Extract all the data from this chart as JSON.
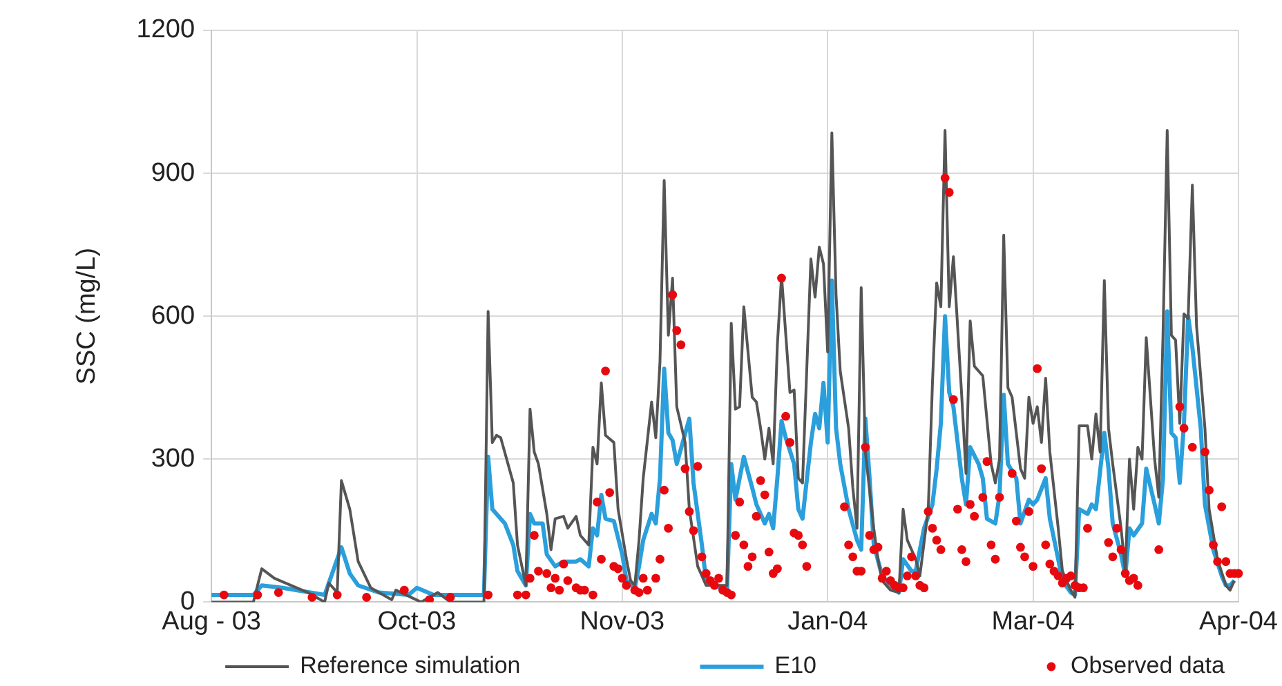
{
  "chart_data": {
    "type": "line",
    "ylabel": "SSC (mg/L)",
    "categories": [
      "Aug - 03",
      null,
      null,
      null,
      null,
      null,
      null,
      null,
      null,
      null,
      null,
      null,
      null,
      null,
      null,
      null,
      null,
      null,
      null,
      null,
      null,
      null,
      null,
      null,
      null,
      null,
      null,
      null,
      null,
      null,
      null,
      null,
      null,
      null,
      null,
      null,
      null,
      null,
      null,
      null,
      null,
      null,
      null,
      null,
      null,
      null,
      null,
      null,
      null,
      "Oct-03",
      null,
      null,
      null,
      null,
      null,
      null,
      null,
      null,
      null,
      null,
      null,
      null,
      null,
      null,
      null,
      null,
      null,
      null,
      null,
      null,
      null,
      null,
      null,
      null,
      null,
      null,
      null,
      null,
      null,
      null,
      null,
      null,
      null,
      null,
      null,
      null,
      null,
      null,
      null,
      null,
      null,
      null,
      null,
      null,
      null,
      null,
      null,
      null,
      "Nov-03",
      null,
      null,
      null,
      null,
      null,
      null,
      null,
      null,
      null,
      null,
      null,
      null,
      null,
      null,
      null,
      null,
      null,
      null,
      null,
      null,
      null,
      null,
      null,
      null,
      null,
      null,
      null,
      null,
      null,
      null,
      null,
      null,
      null,
      null,
      null,
      null,
      null,
      null,
      null,
      null,
      null,
      null,
      null,
      null,
      null,
      null,
      null,
      null,
      "Jan-04",
      null,
      null,
      null,
      null,
      null,
      null,
      null,
      null,
      null,
      null,
      null,
      null,
      null,
      null,
      null,
      null,
      null,
      null,
      null,
      null,
      null,
      null,
      null,
      null,
      null,
      null,
      null,
      null,
      null,
      null,
      null,
      null,
      null,
      null,
      null,
      null,
      null,
      null,
      null,
      null,
      null,
      null,
      null,
      null,
      null,
      null,
      null,
      null,
      "Mar-04",
      null,
      null,
      null,
      null,
      null,
      null,
      null,
      null,
      null,
      null,
      null,
      null,
      null,
      null,
      null,
      null,
      null,
      null,
      null,
      null,
      null,
      null,
      null,
      null,
      null,
      null,
      null,
      null,
      null,
      null,
      null,
      null,
      null,
      null,
      null,
      null,
      null,
      null,
      null,
      null,
      null,
      null,
      null,
      null,
      null,
      null,
      null,
      null,
      "Apr-04"
    ],
    "ylim": [
      0,
      1200
    ],
    "yticks": [
      0,
      300,
      600,
      900,
      1200
    ],
    "grid": true,
    "legend": "bottom",
    "series": [
      {
        "name": "Reference simulation",
        "color": "#555555",
        "values": [
          0,
          null,
          null,
          null,
          null,
          null,
          null,
          null,
          null,
          null,
          0,
          null,
          70,
          null,
          null,
          50,
          null,
          null,
          null,
          null,
          null,
          null,
          null,
          20,
          null,
          null,
          null,
          0,
          40,
          null,
          20,
          255,
          null,
          195,
          null,
          85,
          null,
          null,
          30,
          null,
          null,
          null,
          null,
          5,
          25,
          null,
          null,
          null,
          null,
          null,
          0,
          null,
          null,
          null,
          20,
          null,
          null,
          0,
          null,
          null,
          null,
          null,
          null,
          null,
          null,
          0,
          610,
          335,
          350,
          345,
          null,
          null,
          250,
          120,
          null,
          35,
          405,
          315,
          290,
          null,
          185,
          110,
          175,
          null,
          180,
          155,
          null,
          180,
          140,
          null,
          120,
          325,
          290,
          460,
          350,
          null,
          335,
          195,
          null,
          90,
          45,
          35,
          130,
          260,
          null,
          420,
          345,
          505,
          885,
          560,
          680,
          410,
          null,
          335,
          195,
          null,
          75,
          null,
          35,
          35,
          null,
          null,
          null,
          35,
          585,
          405,
          410,
          620,
          null,
          430,
          420,
          365,
          300,
          365,
          290,
          540,
          685,
          null,
          440,
          445,
          260,
          250,
          null,
          720,
          640,
          745,
          710,
          525,
          985,
          645,
          485,
          null,
          365,
          240,
          155,
          660,
          315,
          null,
          155,
          90,
          45,
          null,
          25,
          null,
          20,
          195,
          130,
          null,
          90,
          55,
          null,
          195,
          460,
          670,
          620,
          990,
          620,
          725,
          null,
          430,
          270,
          590,
          495,
          null,
          475,
          null,
          290,
          250,
          300,
          770,
          450,
          430,
          null,
          280,
          260,
          430,
          375,
          410,
          335,
          470,
          315,
          null,
          155,
          65,
          null,
          25,
          10,
          370,
          null,
          370,
          300,
          395,
          315,
          675,
          365,
          290,
          null,
          155,
          65,
          300,
          195,
          325,
          300,
          555,
          null,
          300,
          220,
          560,
          990,
          560,
          550,
          375,
          605,
          595,
          875,
          580,
          null,
          365,
          195,
          null,
          90,
          null,
          35,
          25,
          45,
          null
        ]
      },
      {
        "name": "E10",
        "color": "#2a9fdc",
        "values": [
          15,
          null,
          null,
          null,
          null,
          null,
          null,
          null,
          null,
          null,
          15,
          null,
          35,
          null,
          null,
          null,
          null,
          30,
          null,
          null,
          null,
          null,
          null,
          null,
          null,
          null,
          null,
          15,
          null,
          null,
          null,
          115,
          null,
          60,
          null,
          35,
          null,
          null,
          null,
          null,
          20,
          null,
          null,
          null,
          null,
          null,
          null,
          15,
          null,
          30,
          null,
          null,
          null,
          15,
          null,
          null,
          null,
          null,
          null,
          null,
          null,
          null,
          null,
          null,
          null,
          15,
          305,
          195,
          185,
          null,
          165,
          null,
          120,
          65,
          null,
          35,
          185,
          165,
          null,
          165,
          100,
          null,
          75,
          null,
          85,
          null,
          null,
          85,
          90,
          null,
          75,
          155,
          140,
          225,
          175,
          null,
          170,
          null,
          100,
          45,
          null,
          30,
          75,
          130,
          null,
          185,
          165,
          260,
          490,
          355,
          340,
          290,
          null,
          null,
          385,
          250,
          null,
          120,
          45,
          null,
          35,
          null,
          null,
          25,
          290,
          215,
          260,
          305,
          null,
          240,
          205,
          null,
          165,
          185,
          155,
          260,
          380,
          345,
          null,
          290,
          195,
          175,
          null,
          335,
          395,
          365,
          460,
          335,
          675,
          365,
          290,
          null,
          195,
          null,
          130,
          110,
          385,
          260,
          120,
          null,
          55,
          null,
          35,
          null,
          20,
          90,
          null,
          65,
          65,
          null,
          155,
          null,
          205,
          280,
          375,
          600,
          440,
          410,
          null,
          260,
          205,
          325,
          null,
          290,
          260,
          175,
          null,
          165,
          225,
          435,
          290,
          null,
          260,
          165,
          null,
          215,
          205,
          215,
          null,
          260,
          175,
          null,
          90,
          45,
          null,
          20,
          15,
          195,
          null,
          185,
          205,
          195,
          null,
          355,
          280,
          165,
          null,
          100,
          55,
          155,
          140,
          null,
          165,
          280,
          null,
          205,
          165,
          260,
          610,
          355,
          345,
          250,
          375,
          600,
          535,
          null,
          365,
          205,
          null,
          110,
          null,
          55,
          35,
          35,
          45,
          null
        ]
      },
      {
        "name": "Observed data",
        "type": "scatter",
        "marker": "circle",
        "color": "#e8090f",
        "values": [
          null,
          null,
          null,
          15,
          null,
          null,
          null,
          null,
          null,
          null,
          null,
          15,
          null,
          null,
          null,
          null,
          20,
          null,
          null,
          null,
          null,
          null,
          null,
          null,
          10,
          null,
          null,
          null,
          null,
          null,
          15,
          null,
          null,
          null,
          null,
          null,
          null,
          10,
          null,
          null,
          null,
          null,
          null,
          null,
          null,
          null,
          25,
          null,
          null,
          null,
          null,
          null,
          5,
          null,
          null,
          null,
          null,
          10,
          null,
          null,
          null,
          null,
          null,
          null,
          null,
          null,
          15,
          null,
          null,
          null,
          null,
          null,
          null,
          15,
          null,
          15,
          50,
          140,
          65,
          null,
          60,
          30,
          50,
          25,
          80,
          45,
          null,
          30,
          25,
          25,
          null,
          15,
          210,
          90,
          485,
          230,
          75,
          70,
          50,
          35,
          null,
          25,
          20,
          50,
          25,
          null,
          50,
          90,
          235,
          155,
          645,
          570,
          540,
          280,
          190,
          150,
          285,
          95,
          60,
          45,
          35,
          50,
          25,
          20,
          15,
          140,
          210,
          120,
          75,
          95,
          180,
          255,
          225,
          105,
          60,
          70,
          680,
          390,
          335,
          145,
          140,
          120,
          75,
          null,
          null,
          null,
          null,
          null,
          null,
          null,
          null,
          200,
          120,
          95,
          65,
          65,
          325,
          140,
          110,
          115,
          50,
          65,
          45,
          35,
          30,
          30,
          55,
          95,
          55,
          35,
          30,
          190,
          155,
          130,
          110,
          890,
          860,
          425,
          195,
          110,
          85,
          205,
          180,
          null,
          220,
          295,
          120,
          90,
          220,
          null,
          null,
          270,
          170,
          115,
          95,
          190,
          75,
          490,
          280,
          120,
          80,
          65,
          55,
          40,
          50,
          55,
          35,
          30,
          30,
          155,
          null,
          null,
          null,
          null,
          125,
          95,
          155,
          110,
          60,
          45,
          50,
          35,
          null,
          null,
          null,
          null,
          110,
          null,
          null,
          null,
          null,
          410,
          365,
          null,
          325,
          null,
          null,
          315,
          235,
          120,
          85,
          200,
          85,
          60,
          60,
          60
        ]
      }
    ]
  }
}
